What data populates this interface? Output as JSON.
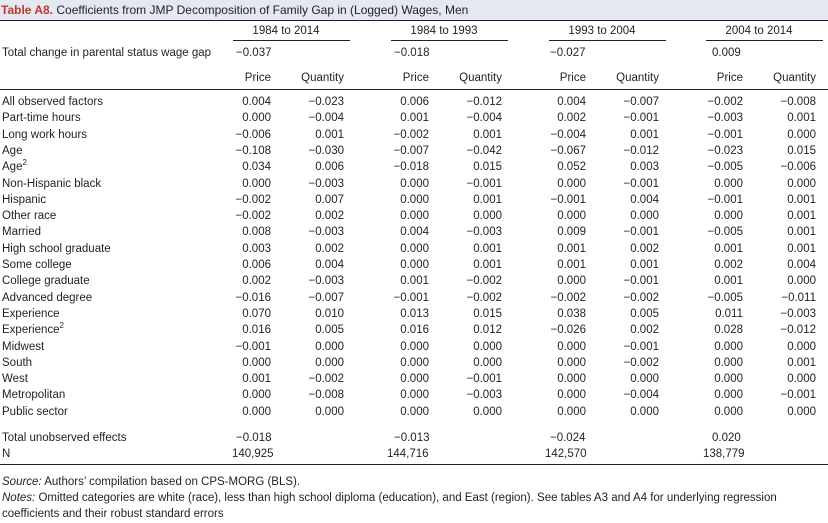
{
  "title": {
    "label": "Table A8.",
    "text": "Coefficients from JMP Decomposition of Family Gap in (Logged) Wages, Men"
  },
  "period_headers": [
    "1984 to 2014",
    "1984 to 1993",
    "1993 to 2004",
    "2004 to 2014"
  ],
  "total_change": {
    "label": "Total change in parental status wage gap",
    "values": [
      "−0.037",
      "−0.018",
      "−0.027",
      "0.009"
    ]
  },
  "subheaders": [
    "Price",
    "Quantity",
    "Price",
    "Quantity",
    "Price",
    "Quantity",
    "Price",
    "Quantity"
  ],
  "rows": [
    {
      "label": "All observed factors",
      "sup": "",
      "values": [
        "0.004",
        "−0.023",
        "0.006",
        "−0.012",
        "0.004",
        "−0.007",
        "−0.002",
        "−0.008"
      ]
    },
    {
      "label": "Part-time hours",
      "sup": "",
      "values": [
        "0.000",
        "−0.004",
        "0.001",
        "−0.004",
        "0.002",
        "−0.001",
        "−0.003",
        "0.001"
      ]
    },
    {
      "label": "Long work hours",
      "sup": "",
      "values": [
        "−0.006",
        "0.001",
        "−0.002",
        "0.001",
        "−0.004",
        "0.001",
        "−0.001",
        "0.000"
      ]
    },
    {
      "label": "Age",
      "sup": "",
      "values": [
        "−0.108",
        "−0.030",
        "−0.007",
        "−0.042",
        "−0.067",
        "−0.012",
        "−0.023",
        "0.015"
      ]
    },
    {
      "label": "Age",
      "sup": "2",
      "values": [
        "0.034",
        "0.006",
        "−0.018",
        "0.015",
        "0.052",
        "0.003",
        "−0.005",
        "−0.006"
      ]
    },
    {
      "label": "Non-Hispanic black",
      "sup": "",
      "values": [
        "0.000",
        "−0.003",
        "0.000",
        "−0.001",
        "0.000",
        "−0.001",
        "0.000",
        "0.000"
      ]
    },
    {
      "label": "Hispanic",
      "sup": "",
      "values": [
        "−0.002",
        "0.007",
        "0.000",
        "0.001",
        "−0.001",
        "0.004",
        "−0.001",
        "0.001"
      ]
    },
    {
      "label": "Other race",
      "sup": "",
      "values": [
        "−0.002",
        "0.002",
        "0.000",
        "0.000",
        "0.000",
        "0.000",
        "0.000",
        "0.001"
      ]
    },
    {
      "label": "Married",
      "sup": "",
      "values": [
        "0.008",
        "−0.003",
        "0.004",
        "−0.003",
        "0.009",
        "−0.001",
        "−0.005",
        "0.001"
      ]
    },
    {
      "label": "High school graduate",
      "sup": "",
      "values": [
        "0.003",
        "0.002",
        "0.000",
        "0.001",
        "0.001",
        "0.002",
        "0.001",
        "0.001"
      ]
    },
    {
      "label": "Some college",
      "sup": "",
      "values": [
        "0.006",
        "0.004",
        "0.000",
        "0.001",
        "0.001",
        "0.001",
        "0.002",
        "0.004"
      ]
    },
    {
      "label": "College graduate",
      "sup": "",
      "values": [
        "0.002",
        "−0.003",
        "0.001",
        "−0.002",
        "0.000",
        "−0.001",
        "0.001",
        "0.000"
      ]
    },
    {
      "label": "Advanced degree",
      "sup": "",
      "values": [
        "−0.016",
        "−0.007",
        "−0.001",
        "−0.002",
        "−0.002",
        "−0.002",
        "−0.005",
        "−0.011"
      ]
    },
    {
      "label": "Experience",
      "sup": "",
      "values": [
        "0.070",
        "0.010",
        "0.013",
        "0.015",
        "0.038",
        "0.005",
        "0.011",
        "−0.003"
      ]
    },
    {
      "label": "Experience",
      "sup": "2",
      "values": [
        "0.016",
        "0.005",
        "0.016",
        "0.012",
        "−0.026",
        "0.002",
        "0.028",
        "−0.012"
      ]
    },
    {
      "label": "Midwest",
      "sup": "",
      "values": [
        "−0.001",
        "0.000",
        "0.000",
        "0.000",
        "0.000",
        "−0.001",
        "0.000",
        "0.000"
      ]
    },
    {
      "label": "South",
      "sup": "",
      "values": [
        "0.000",
        "0.000",
        "0.000",
        "0.000",
        "0.000",
        "−0.002",
        "0.000",
        "0.001"
      ]
    },
    {
      "label": "West",
      "sup": "",
      "values": [
        "0.001",
        "−0.002",
        "0.000",
        "−0.001",
        "0.000",
        "0.000",
        "0.000",
        "0.000"
      ]
    },
    {
      "label": "Metropolitan",
      "sup": "",
      "values": [
        "0.000",
        "−0.008",
        "0.000",
        "−0.003",
        "0.000",
        "−0.004",
        "0.000",
        "−0.001"
      ]
    },
    {
      "label": "Public sector",
      "sup": "",
      "values": [
        "0.000",
        "0.000",
        "0.000",
        "0.000",
        "0.000",
        "0.000",
        "0.000",
        "0.000"
      ]
    }
  ],
  "total_unobserved": {
    "label": "Total unobserved effects",
    "values": [
      "−0.018",
      "−0.013",
      "−0.024",
      "0.020"
    ]
  },
  "n_row": {
    "label": "N",
    "values": [
      "140,925",
      "144,716",
      "142,570",
      "138,779"
    ]
  },
  "source": {
    "label": "Source:",
    "text": " Authors’ compilation based on CPS-MORG (BLS)."
  },
  "notes": {
    "label": "Notes:",
    "text": " Omitted categories are white (race), less than high school diploma (education), and East (region). See tables A3 and A4 for underlying regression coefficients and their robust standard errors"
  }
}
